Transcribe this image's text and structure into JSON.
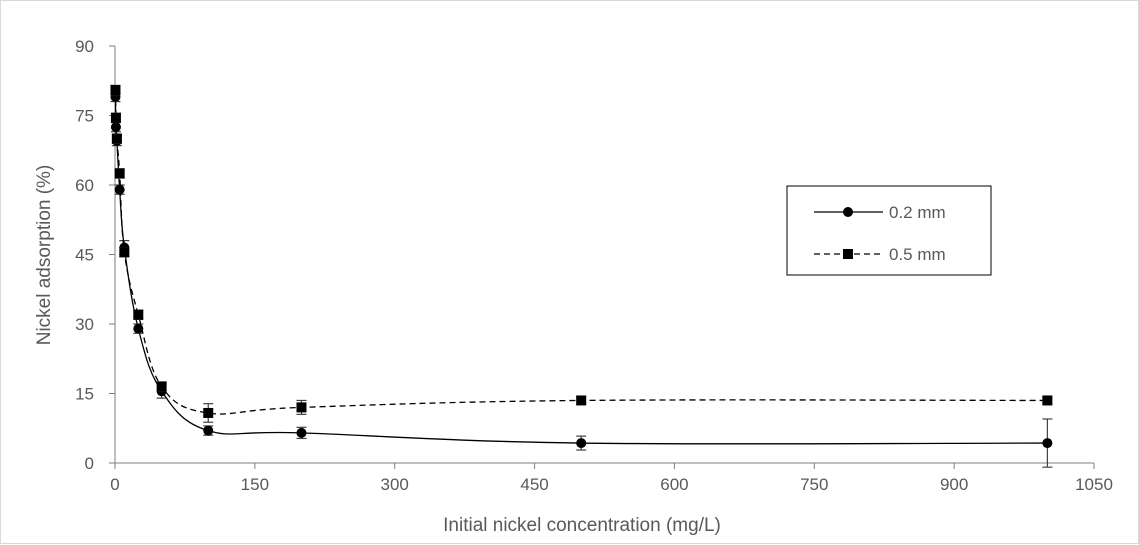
{
  "chart_data": {
    "type": "scatter",
    "title": "",
    "xlabel": "Initial nickel concentration (mg/L)",
    "ylabel": "Nickel adsorption (%)",
    "xlim": [
      0,
      1050
    ],
    "ylim": [
      0,
      90
    ],
    "x_ticks": [
      0,
      150,
      300,
      450,
      600,
      750,
      900,
      1050
    ],
    "y_ticks": [
      0,
      15,
      30,
      45,
      60,
      75,
      90
    ],
    "x_tick_labels": [
      "0",
      "150",
      "300",
      "450",
      "600",
      "750",
      "900",
      "1050"
    ],
    "y_tick_labels": [
      "0",
      "15",
      "30",
      "45",
      "60",
      "75",
      "90"
    ],
    "grid": false,
    "legend_position": "right",
    "series": [
      {
        "name": "0.2 mm",
        "marker": "circle",
        "line_style": "solid",
        "color": "#000000",
        "x": [
          0.5,
          1,
          2,
          5,
          10,
          25,
          50,
          100,
          200,
          500,
          1000
        ],
        "y": [
          79,
          72.5,
          69.5,
          59,
          46.5,
          29,
          15.5,
          7,
          6.5,
          4.3,
          4.3
        ],
        "error": [
          1.0,
          1.0,
          1.0,
          1.0,
          1.5,
          1.0,
          1.5,
          1.0,
          1.2,
          1.5,
          5.2
        ]
      },
      {
        "name": "0.5 mm",
        "marker": "square",
        "line_style": "dashed",
        "color": "#000000",
        "x": [
          0.5,
          1,
          2,
          5,
          10,
          25,
          50,
          100,
          200,
          500,
          1000
        ],
        "y": [
          80.5,
          74.5,
          70,
          62.5,
          45.5,
          32,
          16.5,
          10.8,
          12,
          13.5,
          13.5
        ],
        "error": [
          1.0,
          1.0,
          1.0,
          1.0,
          1.0,
          1.0,
          1.0,
          2.0,
          1.5,
          0.8,
          0.6
        ]
      }
    ]
  }
}
